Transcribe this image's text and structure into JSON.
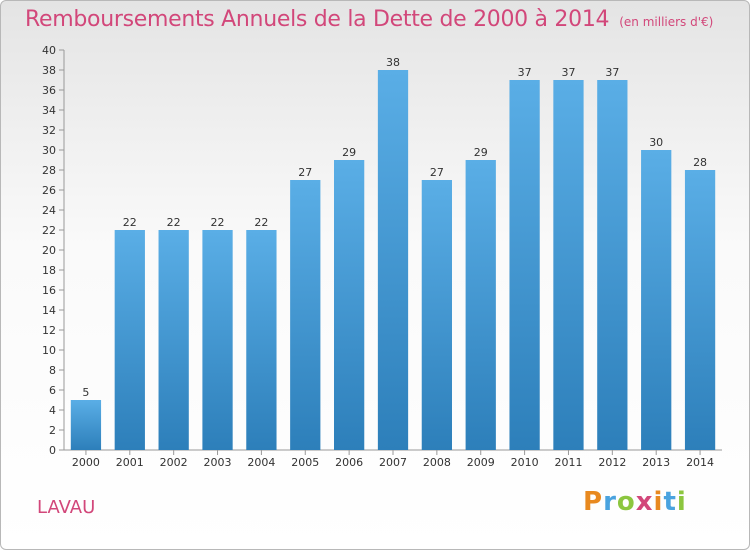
{
  "title": "Remboursements Annuels de la Dette de 2000 à 2014",
  "unit": "(en milliers d'€)",
  "commune": "LAVAU",
  "logo": {
    "letters": [
      "P",
      "r",
      "o",
      "x",
      "i",
      "t",
      "i"
    ],
    "colors": [
      "#e8891f",
      "#4aa3df",
      "#8cc63f",
      "#d2477a",
      "#e8891f",
      "#4aa3df",
      "#8cc63f"
    ]
  },
  "colors": {
    "bar": "#4aa3df",
    "bar_dark": "#2e86c1",
    "title": "#d2477a"
  },
  "chart_data": {
    "type": "bar",
    "title": "Remboursements Annuels de la Dette de 2000 à 2014",
    "categories": [
      "2000",
      "2001",
      "2002",
      "2003",
      "2004",
      "2005",
      "2006",
      "2007",
      "2008",
      "2009",
      "2010",
      "2011",
      "2012",
      "2013",
      "2014"
    ],
    "values": [
      5,
      22,
      22,
      22,
      22,
      27,
      29,
      38,
      27,
      29,
      37,
      37,
      37,
      30,
      28
    ],
    "ylim": [
      0,
      40
    ],
    "yticks": [
      0,
      2,
      4,
      6,
      8,
      10,
      12,
      14,
      16,
      18,
      20,
      22,
      24,
      26,
      28,
      30,
      32,
      34,
      36,
      38,
      40
    ],
    "grid": false,
    "xlabel": "",
    "ylabel": ""
  }
}
